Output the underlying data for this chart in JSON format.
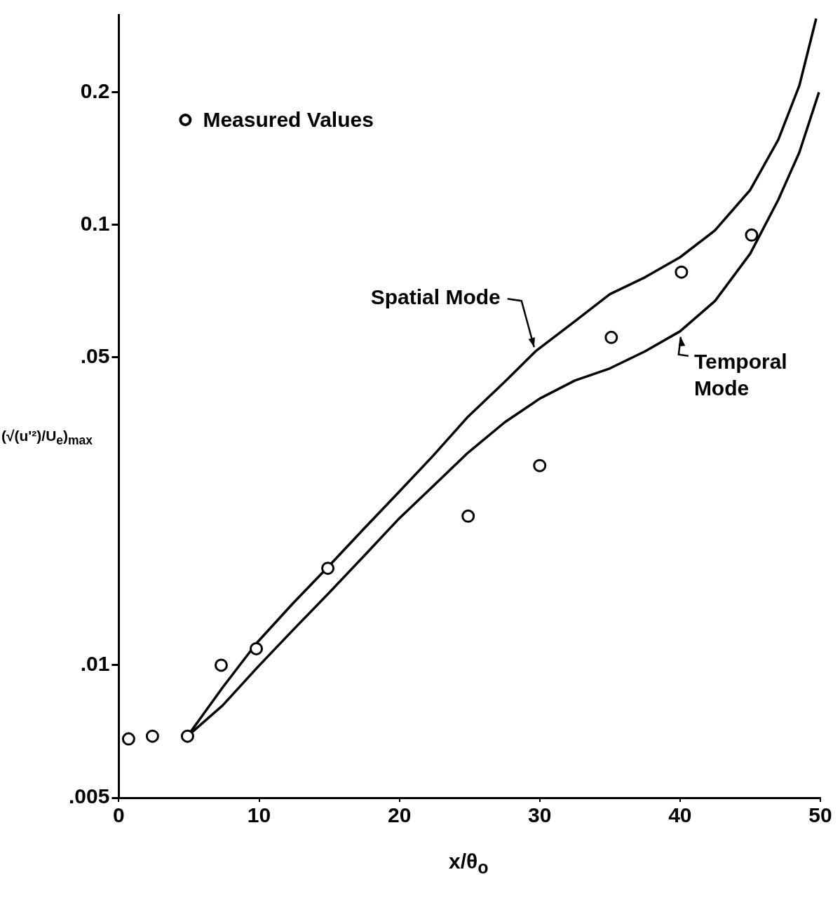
{
  "chart_data": {
    "type": "line",
    "xlabel": "x/θ$_{o}$",
    "ylabel": "(√(u'²)/U$_{e}$)$_{max}$",
    "log": "y",
    "grid": false,
    "legend": "top left",
    "xlim": [
      0,
      50
    ],
    "xticks": [
      0,
      10,
      20,
      30,
      40,
      50
    ],
    "ylim": [
      0.005,
      0.3
    ],
    "yticks": [
      {
        "value": 0.005,
        "label": ".005"
      },
      {
        "value": 0.01,
        "label": ".01"
      },
      {
        "value": 0.05,
        "label": ".05"
      },
      {
        "value": 0.1,
        "label": "0.1"
      },
      {
        "value": 0.2,
        "label": "0.2"
      }
    ],
    "series": [
      {
        "name": "Measured Values",
        "type": "scatter",
        "marker": "circle",
        "color": "#000000",
        "x": [
          0.7,
          2.4,
          4.9,
          7.3,
          9.8,
          14.9,
          24.9,
          30.0,
          35.1,
          40.1,
          45.1
        ],
        "values": [
          0.0068,
          0.0069,
          0.0069,
          0.01,
          0.0109,
          0.0166,
          0.0218,
          0.0284,
          0.0555,
          0.0781,
          0.0948
        ]
      },
      {
        "name": "Spatial Mode",
        "type": "line",
        "marker": "none",
        "line_style": "solid",
        "color": "#000000",
        "x": [
          4.9,
          7.4,
          9.8,
          12.4,
          14.9,
          17.4,
          19.9,
          22.4,
          24.9,
          27.5,
          29.7,
          32.5,
          35.0,
          37.5,
          40.0,
          42.5,
          45.0,
          47.0,
          48.5,
          49.7
        ],
        "values": [
          0.0069,
          0.0089,
          0.0112,
          0.0138,
          0.0167,
          0.0203,
          0.0246,
          0.0299,
          0.0367,
          0.044,
          0.0516,
          0.0604,
          0.0696,
          0.076,
          0.0844,
          0.0972,
          0.12,
          0.156,
          0.207,
          0.294
        ]
      },
      {
        "name": "Temporal Mode",
        "type": "line",
        "marker": "none",
        "line_style": "solid",
        "color": "#000000",
        "x": [
          4.9,
          7.4,
          9.9,
          12.4,
          14.9,
          17.4,
          19.9,
          22.4,
          24.9,
          27.5,
          30.0,
          32.5,
          35.0,
          37.5,
          40.0,
          42.5,
          45.0,
          47.0,
          48.5,
          49.9
        ],
        "values": [
          0.0069,
          0.0081,
          0.0099,
          0.012,
          0.0145,
          0.0176,
          0.0214,
          0.0255,
          0.0304,
          0.0356,
          0.0403,
          0.0443,
          0.0472,
          0.0516,
          0.0573,
          0.0672,
          0.086,
          0.114,
          0.146,
          0.2
        ]
      }
    ]
  }
}
